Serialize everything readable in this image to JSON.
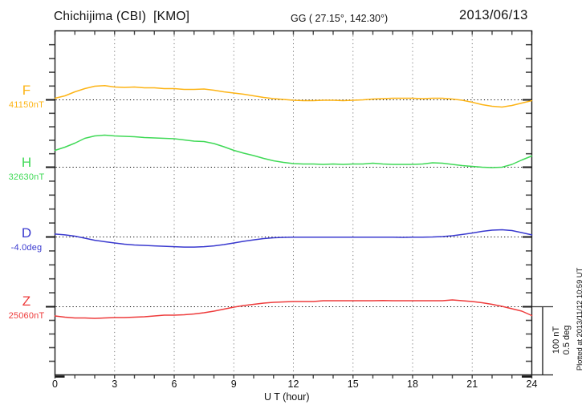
{
  "header": {
    "title": "Chichijima (CBI)  [KMO]",
    "coords": "GG ( 27.15°, 142.30°)",
    "date": "2013/06/13"
  },
  "xaxis": {
    "label": "U T (hour)",
    "ticks": [
      0,
      3,
      6,
      9,
      12,
      15,
      18,
      21,
      24
    ],
    "minor_step_hours": 1,
    "range_hours": [
      0,
      24
    ]
  },
  "scale_bar": {
    "nt_label": "100 nT",
    "deg_label": "0.5 deg",
    "nt": 100,
    "deg": 0.5
  },
  "plotted_at": "Plotted at 2013/11/12 10:59 UT",
  "chart_data": {
    "type": "line",
    "title": "Chichijima (CBI) [KMO] magnetogram 2013/06/13",
    "xlabel": "U T (hour)",
    "x_unit": "hour",
    "x_range": [
      0,
      24
    ],
    "x_step": 0.5,
    "grid": {
      "vertical_dotted_every_hours": 3,
      "horizontal_dotted_baselines": true
    },
    "scale": {
      "bar_nT": 100,
      "bar_deg": 0.5
    },
    "series": [
      {
        "name": "F",
        "label": "F",
        "baseline_label": "41150nT",
        "baseline_value": 41150,
        "unit": "nT",
        "color": "#fdb415",
        "offsets": [
          2.4,
          5.9,
          11.8,
          16.5,
          20.0,
          20.8,
          18.8,
          18.2,
          18.8,
          17.6,
          17.6,
          16.5,
          16.5,
          15.3,
          15.3,
          15.9,
          14.1,
          11.8,
          10.0,
          8.2,
          5.9,
          3.5,
          1.8,
          0.6,
          -0.6,
          -1.2,
          -1.2,
          -0.6,
          -0.6,
          -1.2,
          -0.6,
          0.0,
          1.2,
          1.8,
          2.4,
          2.4,
          2.4,
          1.8,
          2.4,
          2.4,
          1.2,
          -0.6,
          -3.5,
          -7.1,
          -9.4,
          -10.6,
          -8.2,
          -4.7,
          -1.2
        ]
      },
      {
        "name": "H",
        "label": "H",
        "baseline_label": "32630nT",
        "baseline_value": 32630,
        "unit": "nT",
        "color": "#3fd956",
        "offsets": [
          24.7,
          29.4,
          35.3,
          42.4,
          45.9,
          47.1,
          45.9,
          45.3,
          44.7,
          43.5,
          42.9,
          42.4,
          41.8,
          40.0,
          38.2,
          37.6,
          34.7,
          30.0,
          24.7,
          20.6,
          17.1,
          12.9,
          9.4,
          7.1,
          5.3,
          4.7,
          4.7,
          4.1,
          4.7,
          4.1,
          4.7,
          4.7,
          5.9,
          4.7,
          4.1,
          4.1,
          4.1,
          4.7,
          6.5,
          5.9,
          4.1,
          2.4,
          1.2,
          0.0,
          -0.6,
          0.0,
          4.1,
          10.6,
          16.5
        ]
      },
      {
        "name": "D",
        "label": "D",
        "baseline_label": "-4.0deg",
        "baseline_value": -4.0,
        "unit": "deg",
        "color": "#3939cf",
        "offsets": [
          0.021,
          0.015,
          0.006,
          -0.009,
          -0.024,
          -0.035,
          -0.044,
          -0.053,
          -0.059,
          -0.062,
          -0.065,
          -0.068,
          -0.071,
          -0.074,
          -0.074,
          -0.071,
          -0.065,
          -0.056,
          -0.044,
          -0.032,
          -0.021,
          -0.012,
          -0.006,
          -0.003,
          -0.002,
          -0.002,
          -0.001,
          -0.002,
          -0.002,
          -0.001,
          -0.002,
          -0.002,
          -0.001,
          -0.002,
          -0.002,
          -0.003,
          -0.002,
          -0.001,
          0.0,
          0.003,
          0.009,
          0.018,
          0.029,
          0.041,
          0.05,
          0.053,
          0.047,
          0.032,
          0.015
        ]
      },
      {
        "name": "Z",
        "label": "Z",
        "baseline_label": "25060nT",
        "baseline_value": 25060,
        "unit": "nT",
        "color": "#ee3b3b",
        "offsets": [
          -13.5,
          -15.3,
          -16.5,
          -16.5,
          -17.1,
          -16.5,
          -15.9,
          -15.9,
          -15.3,
          -14.7,
          -13.5,
          -12.4,
          -12.4,
          -11.8,
          -10.6,
          -8.8,
          -6.5,
          -3.5,
          -0.6,
          1.8,
          3.5,
          5.3,
          6.5,
          7.1,
          7.6,
          7.6,
          7.6,
          8.8,
          8.8,
          8.8,
          8.8,
          8.8,
          8.8,
          9.1,
          8.8,
          8.8,
          8.8,
          8.8,
          8.8,
          8.8,
          10.0,
          8.8,
          7.6,
          5.9,
          3.5,
          0.6,
          -2.9,
          -6.5,
          -12.9
        ]
      }
    ]
  }
}
